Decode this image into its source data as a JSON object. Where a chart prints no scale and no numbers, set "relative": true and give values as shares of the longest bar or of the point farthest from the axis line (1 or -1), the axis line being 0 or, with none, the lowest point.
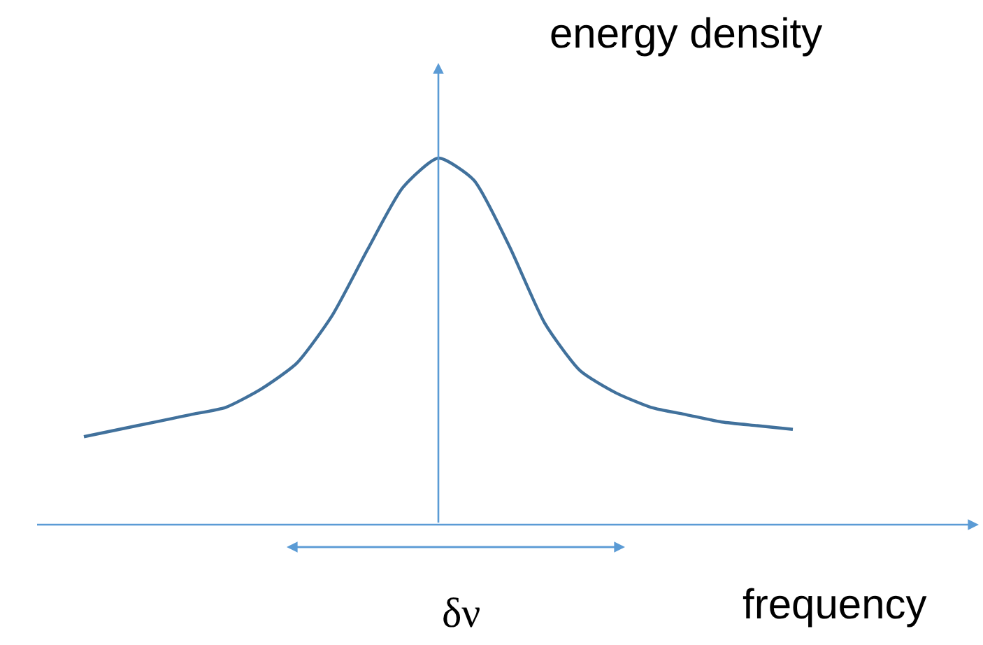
{
  "chart_data": {
    "type": "line",
    "relative": true,
    "marker": "none",
    "categories": [
      null,
      null,
      null,
      null,
      null,
      null,
      null,
      null,
      null,
      null,
      null,
      null,
      null,
      null,
      null,
      null,
      null,
      null,
      null,
      null,
      null
    ],
    "series": [
      {
        "color": "#41719c",
        "values": [
          0.24,
          0.26,
          0.28,
          0.3,
          0.32,
          0.37,
          0.44,
          0.57,
          0.75,
          0.92,
          1.0,
          0.94,
          0.76,
          0.55,
          0.42,
          0.36,
          0.32,
          0.3,
          0.28,
          0.27,
          0.26
        ]
      }
    ],
    "annotations": [
      "energy density",
      "frequency",
      "δν"
    ]
  }
}
